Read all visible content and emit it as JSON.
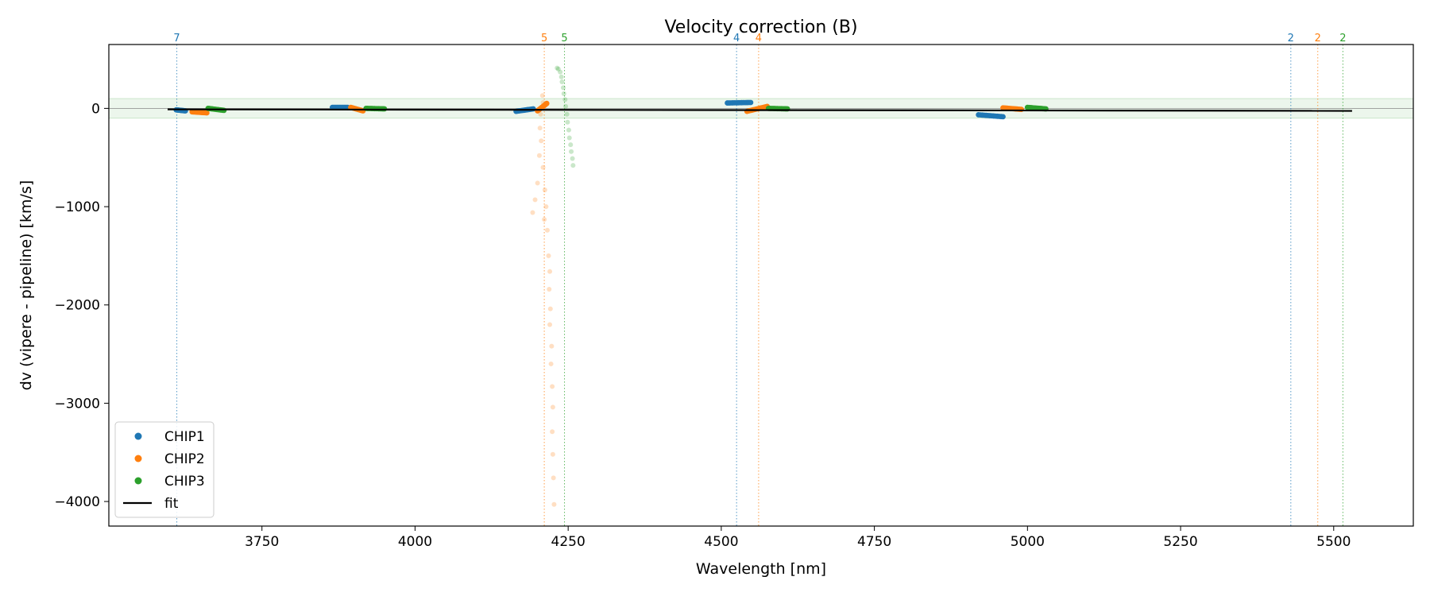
{
  "chart_data": {
    "type": "scatter",
    "title": "Velocity correction (B)",
    "xlabel": "Wavelength [nm]",
    "ylabel": "dv (vipere - pipeline) [km/s]",
    "xlim": [
      3500,
      5630
    ],
    "ylim": [
      -4250,
      650
    ],
    "xticks": [
      3750,
      4000,
      4250,
      4500,
      4750,
      5000,
      5250,
      5500
    ],
    "yticks": [
      0,
      -1000,
      -2000,
      -3000,
      -4000
    ],
    "band": [
      -100,
      100
    ],
    "legend_position": "lower-left",
    "legend": [
      {
        "label": "CHIP1",
        "kind": "dot",
        "color": "#1f77b4"
      },
      {
        "label": "CHIP2",
        "kind": "dot",
        "color": "#ff7f0e"
      },
      {
        "label": "CHIP3",
        "kind": "dot",
        "color": "#2ca02c"
      },
      {
        "label": "fit",
        "kind": "line",
        "color": "#000000"
      }
    ],
    "order_markers": [
      {
        "x": 3611,
        "label": "7",
        "color": "#1f77b4"
      },
      {
        "x": 4211,
        "label": "5",
        "color": "#ff7f0e"
      },
      {
        "x": 4244,
        "label": "5",
        "color": "#2ca02c"
      },
      {
        "x": 4525,
        "label": "4",
        "color": "#1f77b4"
      },
      {
        "x": 4561,
        "label": "4",
        "color": "#ff7f0e"
      },
      {
        "x": 5430,
        "label": "2",
        "color": "#1f77b4"
      },
      {
        "x": 5474,
        "label": "2",
        "color": "#ff7f0e"
      },
      {
        "x": 5515,
        "label": "2",
        "color": "#2ca02c"
      }
    ],
    "fit": {
      "x": [
        3596,
        5530
      ],
      "y": [
        -10,
        -25
      ],
      "color": "#000000"
    },
    "series": [
      {
        "name": "CHIP1",
        "color": "#1f77b4",
        "segments": [
          {
            "x": [
              3610,
              3625
            ],
            "y": [
              -15,
              -25
            ]
          },
          {
            "x": [
              3865,
              3890
            ],
            "y": [
              10,
              10
            ]
          },
          {
            "x": [
              4165,
              4193
            ],
            "y": [
              -30,
              -5
            ]
          },
          {
            "x": [
              4510,
              4548
            ],
            "y": [
              55,
              60
            ]
          },
          {
            "x": [
              4920,
              4960
            ],
            "y": [
              -65,
              -85
            ]
          }
        ],
        "outliers": []
      },
      {
        "name": "CHIP2",
        "color": "#ff7f0e",
        "segments": [
          {
            "x": [
              3636,
              3660
            ],
            "y": [
              -35,
              -45
            ]
          },
          {
            "x": [
              3895,
              3915
            ],
            "y": [
              10,
              -25
            ]
          },
          {
            "x": [
              4200,
              4215
            ],
            "y": [
              -25,
              50
            ]
          },
          {
            "x": [
              4542,
              4575
            ],
            "y": [
              -30,
              20
            ]
          },
          {
            "x": [
              4960,
              4990
            ],
            "y": [
              5,
              -10
            ]
          }
        ],
        "outliers": [
          {
            "x": 4208,
            "y": 130
          },
          {
            "x": 4209,
            "y": 60
          },
          {
            "x": 4205,
            "y": -60
          },
          {
            "x": 4204,
            "y": -200
          },
          {
            "x": 4206,
            "y": -330
          },
          {
            "x": 4203,
            "y": -480
          },
          {
            "x": 4209,
            "y": -600
          },
          {
            "x": 4200,
            "y": -760
          },
          {
            "x": 4212,
            "y": -830
          },
          {
            "x": 4196,
            "y": -930
          },
          {
            "x": 4214,
            "y": -1000
          },
          {
            "x": 4192,
            "y": -1060
          },
          {
            "x": 4211,
            "y": -1130
          },
          {
            "x": 4216,
            "y": -1240
          },
          {
            "x": 4218,
            "y": -1500
          },
          {
            "x": 4220,
            "y": -1660
          },
          {
            "x": 4219,
            "y": -1840
          },
          {
            "x": 4221,
            "y": -2040
          },
          {
            "x": 4220,
            "y": -2200
          },
          {
            "x": 4223,
            "y": -2420
          },
          {
            "x": 4222,
            "y": -2600
          },
          {
            "x": 4224,
            "y": -2830
          },
          {
            "x": 4225,
            "y": -3040
          },
          {
            "x": 4224,
            "y": -3290
          },
          {
            "x": 4225,
            "y": -3520
          },
          {
            "x": 4226,
            "y": -3760
          },
          {
            "x": 4227,
            "y": -4030
          }
        ]
      },
      {
        "name": "CHIP3",
        "color": "#2ca02c",
        "segments": [
          {
            "x": [
              3662,
              3688
            ],
            "y": [
              0,
              -20
            ]
          },
          {
            "x": [
              3920,
              3950
            ],
            "y": [
              0,
              -5
            ]
          },
          {
            "x": [
              4577,
              4608
            ],
            "y": [
              0,
              -5
            ]
          },
          {
            "x": [
              5000,
              5030
            ],
            "y": [
              10,
              -5
            ]
          }
        ],
        "outliers": [
          {
            "x": 4232,
            "y": 410
          },
          {
            "x": 4234,
            "y": 400
          },
          {
            "x": 4237,
            "y": 370
          },
          {
            "x": 4239,
            "y": 320
          },
          {
            "x": 4240,
            "y": 270
          },
          {
            "x": 4242,
            "y": 210
          },
          {
            "x": 4243,
            "y": 150
          },
          {
            "x": 4245,
            "y": 90
          },
          {
            "x": 4246,
            "y": 20
          },
          {
            "x": 4248,
            "y": -60
          },
          {
            "x": 4249,
            "y": -140
          },
          {
            "x": 4251,
            "y": -220
          },
          {
            "x": 4252,
            "y": -300
          },
          {
            "x": 4254,
            "y": -370
          },
          {
            "x": 4255,
            "y": -440
          },
          {
            "x": 4257,
            "y": -510
          },
          {
            "x": 4258,
            "y": -580
          }
        ]
      }
    ]
  }
}
